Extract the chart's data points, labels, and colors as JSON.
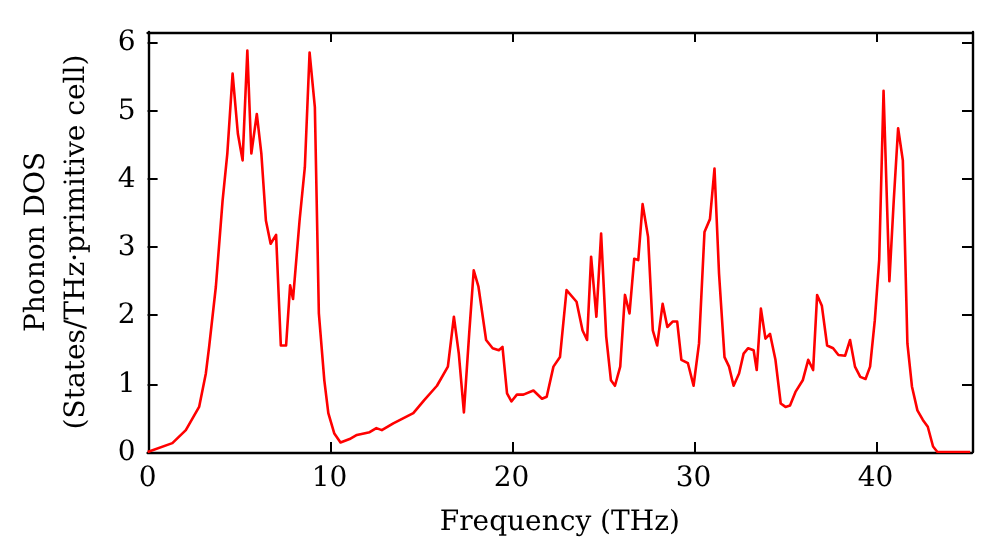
{
  "chart_data": {
    "type": "line",
    "xlabel": "Frequency (THz)",
    "ylabel": "Phonon DOS\n(States/THz·primitive cell)",
    "x": [
      0,
      1.36,
      2.1,
      2.83,
      3.2,
      3.38,
      3.75,
      4.12,
      4.38,
      4.67,
      4.96,
      5.22,
      5.48,
      5.7,
      6.0,
      6.25,
      6.5,
      6.76,
      7.06,
      7.32,
      7.61,
      7.83,
      7.99,
      8.35,
      8.64,
      8.9,
      9.19,
      9.41,
      9.71,
      9.93,
      10.26,
      10.6,
      11.1,
      11.5,
      12.2,
      12.57,
      12.87,
      13.5,
      14.6,
      15.2,
      15.9,
      16.5,
      16.83,
      17.1,
      17.38,
      17.67,
      17.92,
      18.18,
      18.6,
      18.96,
      19.3,
      19.5,
      19.75,
      19.99,
      20.29,
      20.65,
      21.2,
      21.67,
      21.93,
      22.3,
      22.66,
      23.02,
      23.57,
      23.9,
      24.15,
      24.37,
      24.66,
      24.92,
      25.2,
      25.46,
      25.68,
      25.97,
      26.23,
      26.48,
      26.74,
      26.96,
      27.2,
      27.5,
      27.76,
      28.0,
      28.3,
      28.56,
      28.85,
      29.1,
      29.33,
      29.69,
      30.0,
      30.3,
      30.6,
      30.9,
      31.15,
      31.4,
      31.7,
      31.95,
      32.2,
      32.5,
      32.75,
      33.0,
      33.3,
      33.47,
      33.7,
      33.95,
      34.2,
      34.5,
      34.79,
      35.05,
      35.3,
      35.6,
      36.0,
      36.3,
      36.57,
      36.79,
      37.05,
      37.34,
      37.67,
      37.96,
      38.33,
      38.6,
      38.87,
      39.16,
      39.45,
      39.7,
      39.96,
      40.2,
      40.44,
      40.76,
      41.0,
      41.24,
      41.5,
      41.75,
      42.0,
      42.3,
      42.6,
      42.87,
      43.16,
      43.4,
      45.2
    ],
    "series": [
      {
        "color": "#ff0000",
        "values": [
          0,
          0.13,
          0.32,
          0.66,
          1.15,
          1.54,
          2.42,
          3.68,
          4.37,
          5.54,
          4.66,
          4.27,
          5.88,
          4.37,
          4.95,
          4.37,
          3.39,
          3.05,
          3.18,
          1.56,
          1.56,
          2.44,
          2.24,
          3.39,
          4.17,
          5.85,
          5.05,
          2.03,
          1.05,
          0.57,
          0.27,
          0.14,
          0.19,
          0.25,
          0.29,
          0.35,
          0.32,
          0.42,
          0.57,
          0.76,
          0.97,
          1.25,
          1.98,
          1.44,
          0.58,
          1.73,
          2.66,
          2.42,
          1.64,
          1.52,
          1.49,
          1.54,
          0.86,
          0.74,
          0.84,
          0.84,
          0.9,
          0.78,
          0.81,
          1.25,
          1.39,
          2.37,
          2.2,
          1.78,
          1.64,
          2.86,
          1.98,
          3.2,
          1.69,
          1.05,
          0.97,
          1.25,
          2.3,
          2.03,
          2.83,
          2.81,
          3.63,
          3.15,
          1.78,
          1.56,
          2.17,
          1.83,
          1.91,
          1.91,
          1.35,
          1.3,
          0.97,
          1.59,
          3.22,
          3.41,
          4.15,
          2.61,
          1.39,
          1.25,
          0.97,
          1.15,
          1.44,
          1.52,
          1.49,
          1.2,
          2.1,
          1.66,
          1.73,
          1.35,
          0.71,
          0.66,
          0.68,
          0.88,
          1.05,
          1.35,
          1.2,
          2.3,
          2.14,
          1.56,
          1.52,
          1.42,
          1.41,
          1.64,
          1.25,
          1.1,
          1.07,
          1.25,
          1.93,
          2.81,
          5.29,
          2.5,
          3.68,
          4.74,
          4.27,
          1.59,
          0.96,
          0.61,
          0.47,
          0.37,
          0.08,
          0,
          0
        ]
      }
    ],
    "xlim": [
      0,
      45.3
    ],
    "xticks": [
      0,
      10,
      20,
      30,
      40
    ],
    "ylim": [
      0,
      6.15
    ],
    "yticks": [
      0,
      1,
      2,
      3,
      4,
      5,
      6
    ],
    "marker": "none",
    "line_style": "solid",
    "grid": false
  }
}
